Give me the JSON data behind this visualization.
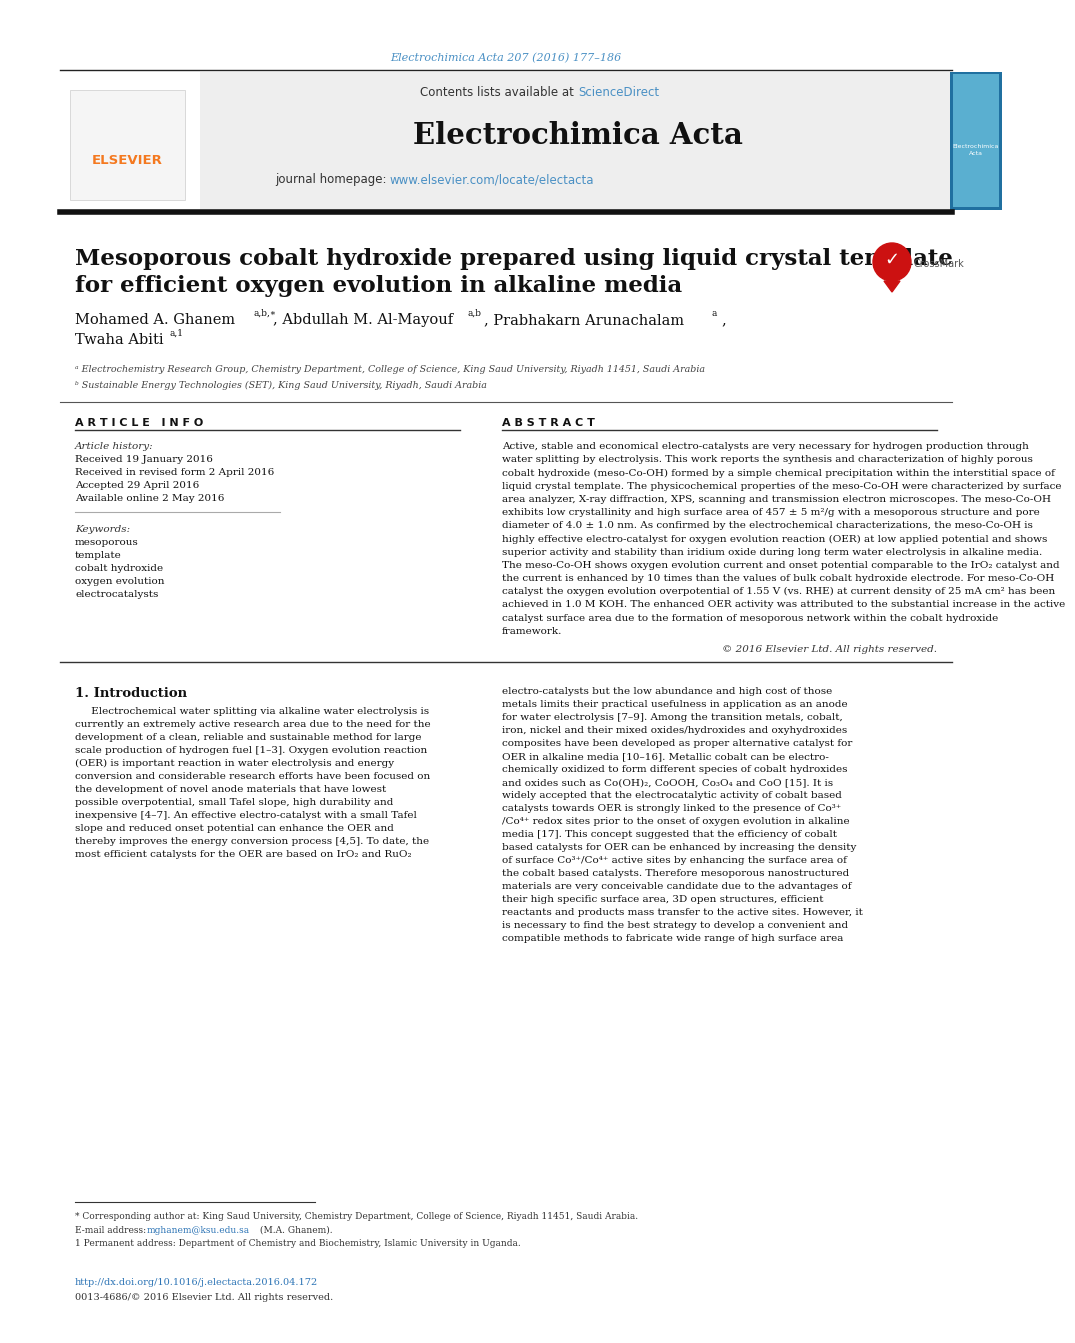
{
  "page_bg": "#ffffff",
  "top_citation": "Electrochimica Acta 207 (2016) 177–186",
  "top_citation_color": "#4a90c4",
  "journal_name": "Electrochimica Acta",
  "contents_text": "Contents lists available at ",
  "sciencedirect_text": "ScienceDirect",
  "sciencedirect_color": "#4a90c4",
  "journal_homepage_text": "journal homepage: ",
  "journal_url": "www.elsevier.com/locate/electacta",
  "journal_url_color": "#4a90c4",
  "header_bg": "#eeeeee",
  "paper_title_line1": "Mesoporous cobalt hydroxide prepared using liquid crystal template",
  "paper_title_line2": "for efficient oxygen evolution in alkaline media",
  "author_line1a": "Mohamed A. Ghanem",
  "author_line1a_sup": "a,b,∗",
  "author_line1b": ", Abdullah M. Al-Mayouf",
  "author_line1b_sup": "a,b",
  "author_line1c": ", Prabhakarn Arunachalam",
  "author_line1c_sup": "a",
  "author_line1d": ",",
  "author_line2": "Twaha Abiti",
  "author_line2_sup": "a,1",
  "affil_a": "ᵃ Electrochemistry Research Group, Chemistry Department, College of Science, King Saud University, Riyadh 11451, Saudi Arabia",
  "affil_b": "ᵇ Sustainable Energy Technologies (SET), King Saud University, Riyadh, Saudi Arabia",
  "article_info_title": "A R T I C L E   I N F O",
  "abstract_title": "A B S T R A C T",
  "article_history_label": "Article history:",
  "received1": "Received 19 January 2016",
  "received2": "Received in revised form 2 April 2016",
  "accepted": "Accepted 29 April 2016",
  "available": "Available online 2 May 2016",
  "keywords_label": "Keywords:",
  "keywords": [
    "mesoporous",
    "template",
    "cobalt hydroxide",
    "oxygen evolution",
    "electrocatalysts"
  ],
  "abstract_lines": [
    "Active, stable and economical electro-catalysts are very necessary for hydrogen production through",
    "water splitting by electrolysis. This work reports the synthesis and characterization of highly porous",
    "cobalt hydroxide (meso-Co-OH) formed by a simple chemical precipitation within the interstitial space of",
    "liquid crystal template. The physicochemical properties of the meso-Co-OH were characterized by surface",
    "area analyzer, X-ray diffraction, XPS, scanning and transmission electron microscopes. The meso-Co-OH",
    "exhibits low crystallinity and high surface area of 457 ± 5 m²/g with a mesoporous structure and pore",
    "diameter of 4.0 ± 1.0 nm. As confirmed by the electrochemical characterizations, the meso-Co-OH is",
    "highly effective electro-catalyst for oxygen evolution reaction (OER) at low applied potential and shows",
    "superior activity and stability than iridium oxide during long term water electrolysis in alkaline media.",
    "The meso-Co-OH shows oxygen evolution current and onset potential comparable to the IrO₂ catalyst and",
    "the current is enhanced by 10 times than the values of bulk cobalt hydroxide electrode. For meso-Co-OH",
    "catalyst the oxygen evolution overpotential of 1.55 V (vs. RHE) at current density of 25 mA cm² has been",
    "achieved in 1.0 M KOH. The enhanced OER activity was attributed to the substantial increase in the active",
    "catalyst surface area due to the formation of mesoporous network within the cobalt hydroxide",
    "framework."
  ],
  "copyright": "© 2016 Elsevier Ltd. All rights reserved.",
  "intro_title": "1. Introduction",
  "intro_col1_lines": [
    "     Electrochemical water splitting via alkaline water electrolysis is",
    "currently an extremely active research area due to the need for the",
    "development of a clean, reliable and sustainable method for large",
    "scale production of hydrogen fuel [1–3]. Oxygen evolution reaction",
    "(OER) is important reaction in water electrolysis and energy",
    "conversion and considerable research efforts have been focused on",
    "the development of novel anode materials that have lowest",
    "possible overpotential, small Tafel slope, high durability and",
    "inexpensive [4–7]. An effective electro-catalyst with a small Tafel",
    "slope and reduced onset potential can enhance the OER and",
    "thereby improves the energy conversion process [4,5]. To date, the",
    "most efficient catalysts for the OER are based on IrO₂ and RuO₂"
  ],
  "intro_col2_lines": [
    "electro-catalysts but the low abundance and high cost of those",
    "metals limits their practical usefulness in application as an anode",
    "for water electrolysis [7–9]. Among the transition metals, cobalt,",
    "iron, nickel and their mixed oxides/hydroxides and oxyhydroxides",
    "composites have been developed as proper alternative catalyst for",
    "OER in alkaline media [10–16]. Metallic cobalt can be electro-",
    "chemically oxidized to form different species of cobalt hydroxides",
    "and oxides such as Co(OH)₂, CoOOH, Co₃O₄ and CoO [15]. It is",
    "widely accepted that the electrocatalytic activity of cobalt based",
    "catalysts towards OER is strongly linked to the presence of Co³⁺",
    "/Co⁴⁺ redox sites prior to the onset of oxygen evolution in alkaline",
    "media [17]. This concept suggested that the efficiency of cobalt",
    "based catalysts for OER can be enhanced by increasing the density",
    "of surface Co³⁺/Co⁴⁺ active sites by enhancing the surface area of",
    "the cobalt based catalysts. Therefore mesoporous nanostructured",
    "materials are very conceivable candidate due to the advantages of",
    "their high specific surface area, 3D open structures, efficient",
    "reactants and products mass transfer to the active sites. However, it",
    "is necessary to find the best strategy to develop a convenient and",
    "compatible methods to fabricate wide range of high surface area"
  ],
  "footnote_line": "_______________________________",
  "footnote_star": "* Corresponding author at: King Saud University, Chemistry Department, College of Science, Riyadh 11451, Saudi Arabia.",
  "footnote_email_label": "E-mail address: ",
  "footnote_email": "mghanem@ksu.edu.sa",
  "footnote_email_rest": " (M.A. Ghanem).",
  "footnote_1": "1 Permanent address: Department of Chemistry and Biochemistry, Islamic University in Uganda.",
  "doi": "http://dx.doi.org/10.1016/j.electacta.2016.04.172",
  "issn": "0013-4686/© 2016 Elsevier Ltd. All rights reserved.",
  "elsevier_orange": "#f47920",
  "link_color": "#2e75b6",
  "dark_line": "#222222",
  "mid_line": "#555555",
  "text_black": "#111111",
  "text_dark": "#222222",
  "text_gray": "#444444"
}
